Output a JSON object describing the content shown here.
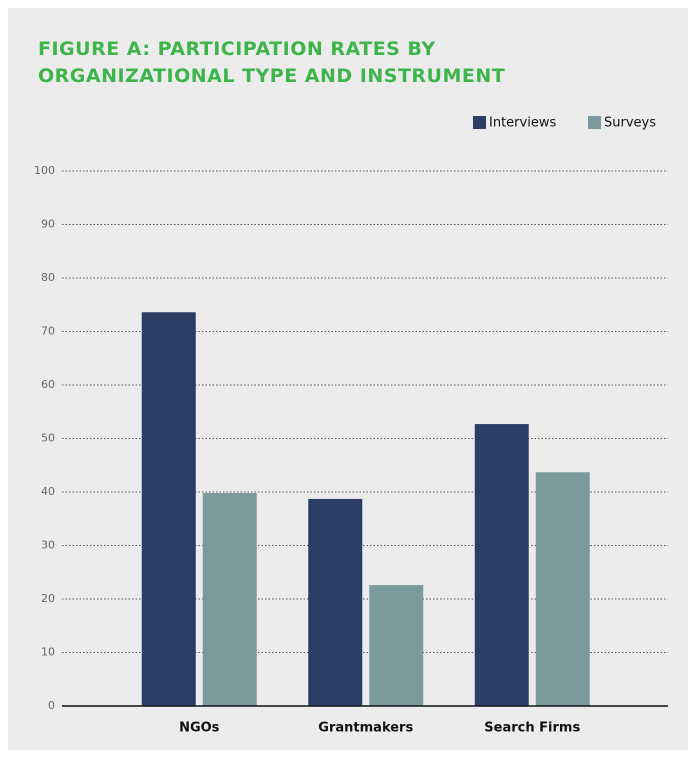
{
  "chart_data": {
    "type": "bar",
    "title": "FIGURE A: PARTICIPATION RATES BY ORGANIZATIONAL TYPE AND INSTRUMENT",
    "categories": [
      "NGOs",
      "Grantmakers",
      "Search Firms"
    ],
    "series": [
      {
        "name": "Interviews",
        "color": "#2d3e66",
        "values": [
          73.6,
          38.7,
          52.7
        ]
      },
      {
        "name": "Surveys",
        "color": "#7a9a9d",
        "values": [
          39.8,
          22.6,
          43.7
        ]
      }
    ],
    "ylim": [
      0,
      100
    ],
    "yticks": [
      0,
      10,
      20,
      30,
      40,
      50,
      60,
      70,
      80,
      90,
      100
    ],
    "grid": true,
    "legend": "top-right"
  }
}
